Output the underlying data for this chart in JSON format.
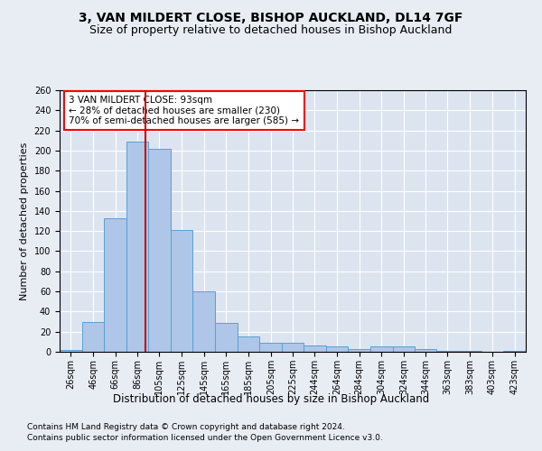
{
  "title1": "3, VAN MILDERT CLOSE, BISHOP AUCKLAND, DL14 7GF",
  "title2": "Size of property relative to detached houses in Bishop Auckland",
  "xlabel": "Distribution of detached houses by size in Bishop Auckland",
  "ylabel": "Number of detached properties",
  "footer1": "Contains HM Land Registry data © Crown copyright and database right 2024.",
  "footer2": "Contains public sector information licensed under the Open Government Licence v3.0.",
  "annotation_line1": "3 VAN MILDERT CLOSE: 93sqm",
  "annotation_line2": "← 28% of detached houses are smaller (230)",
  "annotation_line3": "70% of semi-detached houses are larger (585) →",
  "property_size": 93,
  "bar_categories": [
    "26sqm",
    "46sqm",
    "66sqm",
    "86sqm",
    "105sqm",
    "125sqm",
    "145sqm",
    "165sqm",
    "185sqm",
    "205sqm",
    "225sqm",
    "244sqm",
    "264sqm",
    "284sqm",
    "304sqm",
    "324sqm",
    "344sqm",
    "363sqm",
    "383sqm",
    "403sqm",
    "423sqm"
  ],
  "bar_values": [
    2,
    30,
    133,
    209,
    202,
    121,
    60,
    29,
    15,
    9,
    9,
    6,
    5,
    3,
    5,
    5,
    3,
    1,
    1,
    0,
    1
  ],
  "bar_edges": [
    16,
    36,
    56,
    76,
    95,
    115,
    135,
    155,
    175,
    195,
    215,
    234,
    254,
    274,
    294,
    314,
    334,
    353,
    373,
    393,
    413,
    433
  ],
  "bar_color": "#aec6e8",
  "bar_edge_color": "#5a9fd4",
  "vline_x": 93,
  "vline_color": "#cc0000",
  "ylim": [
    0,
    260
  ],
  "yticks": [
    0,
    20,
    40,
    60,
    80,
    100,
    120,
    140,
    160,
    180,
    200,
    220,
    240,
    260
  ],
  "bg_color": "#e8edf4",
  "plot_bg_color": "#dce4f0",
  "title1_fontsize": 10,
  "title2_fontsize": 9,
  "xlabel_fontsize": 8.5,
  "ylabel_fontsize": 8,
  "tick_fontsize": 7,
  "annotation_fontsize": 7.5,
  "footer_fontsize": 6.5
}
